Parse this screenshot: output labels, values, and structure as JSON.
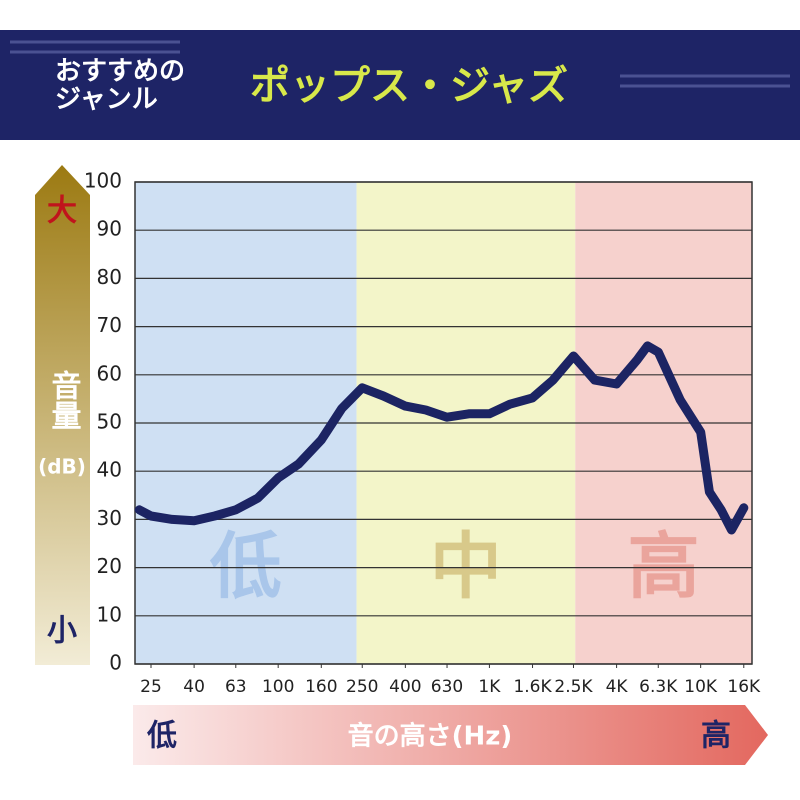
{
  "header": {
    "genre_label": [
      "おすすめの",
      "ジャンル"
    ],
    "genre": "ポップス・ジャズ"
  },
  "chart_data": {
    "type": "line",
    "color": "#1c2463",
    "xscale": "log",
    "grid": true,
    "x": [
      22,
      25,
      31.5,
      40,
      50,
      63,
      80,
      100,
      125,
      160,
      200,
      250,
      315,
      400,
      500,
      630,
      800,
      1000,
      1250,
      1600,
      2000,
      2500,
      3150,
      4000,
      5000,
      5600,
      6300,
      8000,
      10000,
      11000,
      12500,
      14000,
      16000
    ],
    "values": [
      32,
      30.7,
      30,
      29.7,
      30.7,
      32,
      34.4,
      38.6,
      41.5,
      46.5,
      53,
      57.3,
      55.6,
      53.5,
      52.7,
      51.2,
      51.9,
      51.9,
      53.9,
      55.2,
      58.9,
      63.9,
      58.9,
      58.1,
      63.1,
      66,
      64.7,
      54.8,
      48.1,
      35.7,
      32,
      27.8,
      32.4
    ],
    "xlim": [
      21,
      17500
    ],
    "ylim": [
      0,
      100
    ],
    "yticks": [
      0,
      10,
      20,
      30,
      40,
      50,
      60,
      70,
      80,
      90,
      100
    ],
    "xticks": [
      25,
      40,
      63,
      100,
      160,
      250,
      400,
      630,
      {
        "value": 1000,
        "label": "1K"
      },
      {
        "value": 1600,
        "label": "1.6K"
      },
      {
        "value": 2500,
        "label": "2.5K"
      },
      {
        "value": 4000,
        "label": "4K"
      },
      {
        "value": 6300,
        "label": "6.3K"
      },
      {
        "value": 10000,
        "label": "10K"
      },
      {
        "value": 16000,
        "label": "16K"
      }
    ],
    "zones": [
      {
        "label": "低",
        "from": 21,
        "to": 235,
        "color": "#cfe0f3",
        "label_color": "#a9c6ea"
      },
      {
        "label": "中",
        "from": 235,
        "to": 2550,
        "color": "#f3f5c9",
        "label_color": "#d8c98a"
      },
      {
        "label": "高",
        "from": 2550,
        "to": 17500,
        "color": "#f6d1cd",
        "label_color": "#eaa49c"
      }
    ],
    "y_axis": {
      "high": "大",
      "label": "音量",
      "unit": "(dB)",
      "low": "小"
    },
    "x_axis": {
      "low": "低",
      "label": "音の高さ(Hz)",
      "high": "高"
    }
  }
}
